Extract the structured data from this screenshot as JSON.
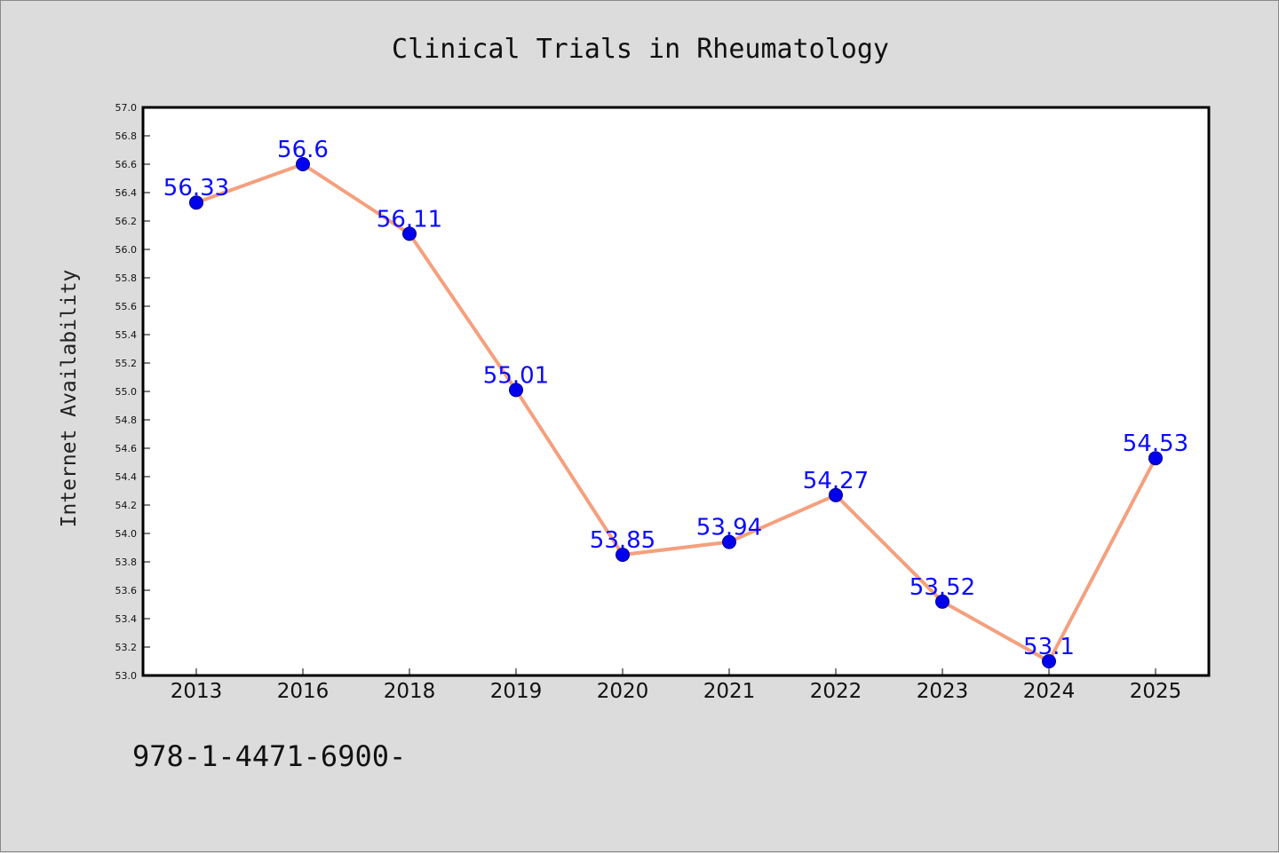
{
  "figure": {
    "background": "#dcdcdc",
    "footnote": "978-1-4471-6900-"
  },
  "chart_data": {
    "type": "line",
    "title": "Clinical Trials in Rheumatology",
    "xlabel": "",
    "ylabel": "Internet Availability",
    "categories": [
      "2013",
      "2016",
      "2018",
      "2019",
      "2020",
      "2021",
      "2022",
      "2023",
      "2024",
      "2025"
    ],
    "series": [
      {
        "values": [
          56.33,
          56.6,
          56.11,
          55.01,
          53.85,
          53.94,
          54.27,
          53.52,
          53.1,
          54.53
        ],
        "labels": [
          "56.33",
          "56.6",
          "56.11",
          "55.01",
          "53.85",
          "53.94",
          "54.27",
          "53.52",
          "53.1",
          "54.53"
        ],
        "line_color": "#f4a07e",
        "marker_color": "#0000ee",
        "label_color": "#0a0aff"
      }
    ],
    "ylim": [
      53.0,
      57.0
    ],
    "yticks": [
      "53.0",
      "53.2",
      "53.4",
      "53.6",
      "53.8",
      "54.0",
      "54.2",
      "54.4",
      "54.6",
      "54.8",
      "55.0",
      "55.2",
      "55.4",
      "55.6",
      "55.8",
      "56.0",
      "56.2",
      "56.4",
      "56.6",
      "56.8",
      "57.0"
    ],
    "grid": false,
    "plot_background": "#ffffff"
  }
}
